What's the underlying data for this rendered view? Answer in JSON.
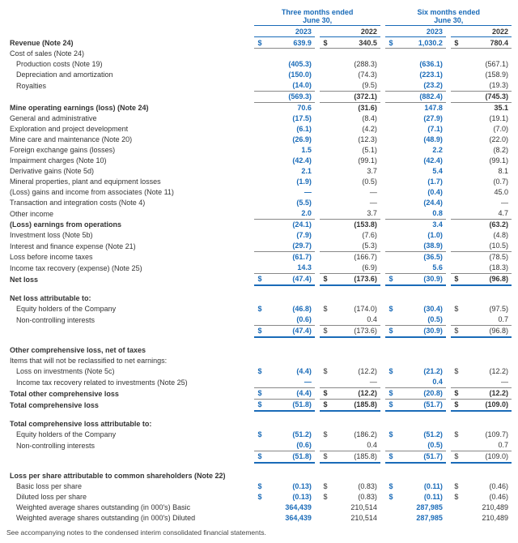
{
  "typography": {
    "font_family": "Arial",
    "base_fontsize_pt": 9,
    "header_color": "#1a6bb8",
    "text_color": "#333333",
    "rule_color": "#888888"
  },
  "headers": {
    "period3": "Three months ended",
    "period6": "Six months ended",
    "date": "June 30,",
    "y2023": "2023",
    "y2022": "2022"
  },
  "currency": "$",
  "rows": {
    "revenue": {
      "label": "Revenue (Note 24)",
      "v": [
        "639.9",
        "340.5",
        "1,030.2",
        "780.4"
      ],
      "cur": true,
      "bold": true,
      "botline": true
    },
    "cos_h": {
      "label": "Cost of sales (Note 24)",
      "v": [
        "",
        "",
        "",
        ""
      ]
    },
    "prod": {
      "label": "Production costs (Note 19)",
      "v": [
        "(405.3)",
        "(288.3)",
        "(636.1)",
        "(567.1)"
      ],
      "indent": 1
    },
    "dep": {
      "label": "Depreciation and amortization",
      "v": [
        "(150.0)",
        "(74.3)",
        "(223.1)",
        "(158.9)"
      ],
      "indent": 1
    },
    "roy": {
      "label": "Royalties",
      "v": [
        "(14.0)",
        "(9.5)",
        "(23.2)",
        "(19.3)"
      ],
      "indent": 1,
      "botline": true
    },
    "cos_t": {
      "label": "",
      "v": [
        "(569.3)",
        "(372.1)",
        "(882.4)",
        "(745.3)"
      ],
      "bold": true,
      "botline": true
    },
    "mine_op": {
      "label": "Mine operating earnings (loss) (Note 24)",
      "v": [
        "70.6",
        "(31.6)",
        "147.8",
        "35.1"
      ],
      "bold": true
    },
    "ga": {
      "label": "General and administrative",
      "v": [
        "(17.5)",
        "(8.4)",
        "(27.9)",
        "(19.1)"
      ]
    },
    "expl": {
      "label": "Exploration and project development",
      "v": [
        "(6.1)",
        "(4.2)",
        "(7.1)",
        "(7.0)"
      ]
    },
    "care": {
      "label": "Mine care and maintenance (Note 20)",
      "v": [
        "(26.9)",
        "(12.3)",
        "(48.9)",
        "(22.0)"
      ]
    },
    "fx": {
      "label": "Foreign exchange gains (losses)",
      "v": [
        "1.5",
        "(5.1)",
        "2.2",
        "(8.2)"
      ]
    },
    "impair": {
      "label": "Impairment charges (Note 10)",
      "v": [
        "(42.4)",
        "(99.1)",
        "(42.4)",
        "(99.1)"
      ]
    },
    "deriv": {
      "label": "Derivative gains (Note 5d)",
      "v": [
        "2.1",
        "3.7",
        "5.4",
        "8.1"
      ]
    },
    "minprop": {
      "label": "Mineral properties, plant and equipment losses",
      "v": [
        "(1.9)",
        "(0.5)",
        "(1.7)",
        "(0.7)"
      ]
    },
    "assoc": {
      "label": "(Loss) gains and income from associates (Note 11)",
      "v": [
        "—",
        "—",
        "(0.4)",
        "45.0"
      ]
    },
    "trans": {
      "label": "Transaction and integration costs (Note 4)",
      "v": [
        "(5.5)",
        "—",
        "(24.4)",
        "—"
      ]
    },
    "other": {
      "label": "Other income",
      "v": [
        "2.0",
        "3.7",
        "0.8",
        "4.7"
      ],
      "botline": true
    },
    "ops": {
      "label": "(Loss) earnings from operations",
      "v": [
        "(24.1)",
        "(153.8)",
        "3.4",
        "(63.2)"
      ],
      "bold": true
    },
    "invloss": {
      "label": "Investment loss (Note 5b)",
      "v": [
        "(7.9)",
        "(7.6)",
        "(1.0)",
        "(4.8)"
      ]
    },
    "interest": {
      "label": "Interest and finance expense (Note 21)",
      "v": [
        "(29.7)",
        "(5.3)",
        "(38.9)",
        "(10.5)"
      ],
      "botline": true
    },
    "lbt": {
      "label": "Loss before income taxes",
      "v": [
        "(61.7)",
        "(166.7)",
        "(36.5)",
        "(78.5)"
      ]
    },
    "tax": {
      "label": "Income tax recovery (expense) (Note 25)",
      "v": [
        "14.3",
        "(6.9)",
        "5.6",
        "(18.3)"
      ],
      "botline": true
    },
    "netloss": {
      "label": "Net loss",
      "v": [
        "(47.4)",
        "(173.6)",
        "(30.9)",
        "(96.8)"
      ],
      "bold": true,
      "cur": true,
      "botdbl": true
    },
    "attr_h": {
      "label": "Net loss attributable to:",
      "v": [
        "",
        "",
        "",
        ""
      ],
      "bold": true
    },
    "attr_eq": {
      "label": "Equity holders of the Company",
      "v": [
        "(46.8)",
        "(174.0)",
        "(30.4)",
        "(97.5)"
      ],
      "indent": 1,
      "cur": true
    },
    "attr_nci": {
      "label": "Non-controlling interests",
      "v": [
        "(0.6)",
        "0.4",
        "(0.5)",
        "0.7"
      ],
      "indent": 1,
      "botline": true
    },
    "attr_t": {
      "label": "",
      "v": [
        "(47.4)",
        "(173.6)",
        "(30.9)",
        "(96.8)"
      ],
      "cur": true,
      "botdbl": true
    },
    "oci_h": {
      "label": "Other comprehensive loss, net of taxes",
      "v": [
        "",
        "",
        "",
        ""
      ],
      "bold": true
    },
    "oci_sub": {
      "label": "Items that will not be reclassified to net earnings:",
      "v": [
        "",
        "",
        "",
        ""
      ]
    },
    "oci_inv": {
      "label": "Loss on investments (Note 5c)",
      "v": [
        "(4.4)",
        "(12.2)",
        "(21.2)",
        "(12.2)"
      ],
      "indent": 1,
      "cur": true
    },
    "oci_tax": {
      "label": "Income tax recovery related to investments (Note 25)",
      "v": [
        "—",
        "—",
        "0.4",
        "—"
      ],
      "indent": 1,
      "botline": true
    },
    "oci_t": {
      "label": "Total other comprehensive loss",
      "v": [
        "(4.4)",
        "(12.2)",
        "(20.8)",
        "(12.2)"
      ],
      "bold": true,
      "cur": true,
      "botline": true
    },
    "tcl": {
      "label": "Total comprehensive loss",
      "v": [
        "(51.8)",
        "(185.8)",
        "(51.7)",
        "(109.0)"
      ],
      "bold": true,
      "cur": true,
      "botdbl": true
    },
    "tcl_h": {
      "label": "Total comprehensive loss attributable to:",
      "v": [
        "",
        "",
        "",
        ""
      ],
      "bold": true
    },
    "tcl_eq": {
      "label": "Equity holders of the Company",
      "v": [
        "(51.2)",
        "(186.2)",
        "(51.2)",
        "(109.7)"
      ],
      "indent": 1,
      "cur": true
    },
    "tcl_nci": {
      "label": "Non-controlling interests",
      "v": [
        "(0.6)",
        "0.4",
        "(0.5)",
        "0.7"
      ],
      "indent": 1,
      "botline": true
    },
    "tcl_t": {
      "label": "",
      "v": [
        "(51.8)",
        "(185.8)",
        "(51.7)",
        "(109.0)"
      ],
      "cur": true,
      "botdbl": true
    },
    "lps_h": {
      "label": "Loss per share attributable to common shareholders (Note 22)",
      "v": [
        "",
        "",
        "",
        ""
      ],
      "bold": true
    },
    "lps_b": {
      "label": "Basic loss per share",
      "v": [
        "(0.13)",
        "(0.83)",
        "(0.11)",
        "(0.46)"
      ],
      "indent": 1,
      "cur": true
    },
    "lps_d": {
      "label": "Diluted loss per share",
      "v": [
        "(0.13)",
        "(0.83)",
        "(0.11)",
        "(0.46)"
      ],
      "indent": 1,
      "cur": true
    },
    "was_b": {
      "label": "Weighted average shares outstanding (in 000's) Basic",
      "v": [
        "364,439",
        "210,514",
        "287,985",
        "210,489"
      ],
      "indent": 1
    },
    "was_d": {
      "label": "Weighted average shares outstanding (in 000's) Diluted",
      "v": [
        "364,439",
        "210,514",
        "287,985",
        "210,489"
      ],
      "indent": 1
    }
  },
  "footnote": "See accompanying notes to the condensed interim consolidated financial statements."
}
